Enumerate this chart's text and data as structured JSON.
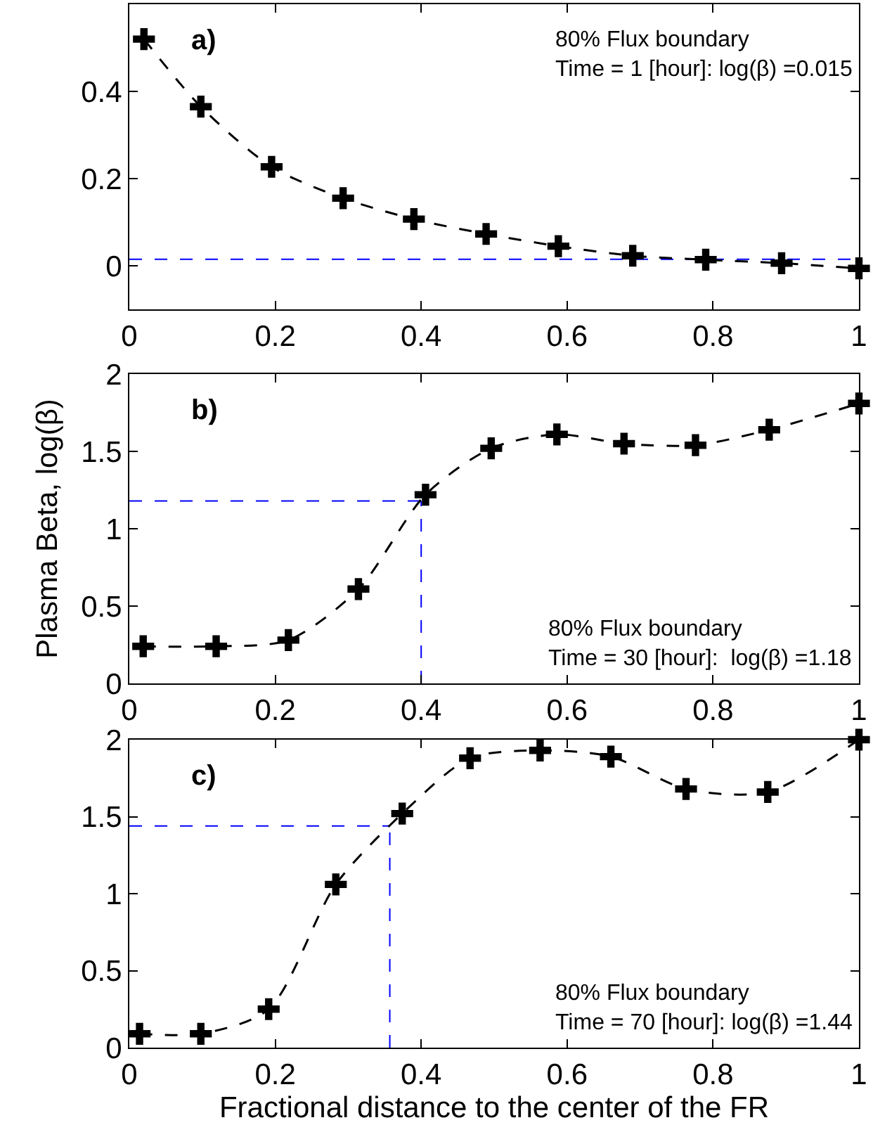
{
  "chart_data": [
    {
      "type": "line",
      "x": [
        0.02,
        0.098,
        0.195,
        0.293,
        0.39,
        0.489,
        0.588,
        0.69,
        0.79,
        0.894,
        1.0
      ],
      "series": [
        {
          "color": "#000000",
          "values": [
            0.52,
            0.365,
            0.227,
            0.155,
            0.107,
            0.073,
            0.045,
            0.023,
            0.014,
            0.006,
            -0.006
          ]
        }
      ],
      "xlim": [
        0,
        1
      ],
      "xticks": [
        0,
        0.2,
        0.4,
        0.6,
        0.8,
        1
      ],
      "ylim": [
        -0.1,
        0.6
      ],
      "yticks": [
        0,
        0.2,
        0.4
      ],
      "marker": "cross",
      "line_style": "dashed",
      "ref_lines": [
        {
          "axis": "y",
          "value": 0.015,
          "color": "#0000ff",
          "line_style": "dashed"
        }
      ],
      "annotations": [
        "a)",
        "80% Flux boundary\nTime = 1 [hour]: log(β) =0.015"
      ]
    },
    {
      "type": "line",
      "x": [
        0.019,
        0.119,
        0.218,
        0.314,
        0.406,
        0.496,
        0.586,
        0.678,
        0.776,
        0.877,
        1.0
      ],
      "series": [
        {
          "color": "#000000",
          "values": [
            0.24,
            0.24,
            0.28,
            0.61,
            1.22,
            1.52,
            1.61,
            1.55,
            1.54,
            1.64,
            1.81
          ]
        }
      ],
      "xlim": [
        0,
        1
      ],
      "xticks": [
        0,
        0.2,
        0.4,
        0.6,
        0.8,
        1
      ],
      "ylim": [
        0,
        2
      ],
      "yticks": [
        0,
        0.5,
        1,
        1.5,
        2
      ],
      "ylabel": "Plasma Beta, log(β)",
      "marker": "cross",
      "line_style": "dashed",
      "ref_lines": [
        {
          "axis": "y",
          "value": 1.18,
          "color": "#0000ff",
          "line_style": "dashed"
        },
        {
          "axis": "x",
          "value": 0.4,
          "color": "#0000ff",
          "line_style": "dashed"
        }
      ],
      "annotations": [
        "b)",
        "80% Flux boundary\nTime = 30 [hour]:  log(β) =1.18"
      ]
    },
    {
      "type": "line",
      "x": [
        0.014,
        0.098,
        0.191,
        0.283,
        0.374,
        0.467,
        0.563,
        0.66,
        0.763,
        0.875,
        1.0
      ],
      "series": [
        {
          "color": "#000000",
          "values": [
            0.09,
            0.09,
            0.25,
            1.06,
            1.52,
            1.88,
            1.93,
            1.89,
            1.68,
            1.66,
            2.0
          ]
        }
      ],
      "xlim": [
        0,
        1
      ],
      "xticks": [
        0,
        0.2,
        0.4,
        0.6,
        0.8,
        1
      ],
      "ylim": [
        0,
        2
      ],
      "yticks": [
        0,
        0.5,
        1,
        1.5,
        2
      ],
      "xlabel": "Fractional distance to the center of the FR",
      "marker": "cross",
      "line_style": "dashed",
      "ref_lines": [
        {
          "axis": "y",
          "value": 1.44,
          "color": "#0000ff",
          "line_style": "dashed"
        },
        {
          "axis": "x",
          "value": 0.357,
          "color": "#0000ff",
          "line_style": "dashed"
        }
      ],
      "annotations": [
        "c)",
        "80% Flux boundary\nTime = 70 [hour]: log(β) =1.44"
      ]
    }
  ]
}
